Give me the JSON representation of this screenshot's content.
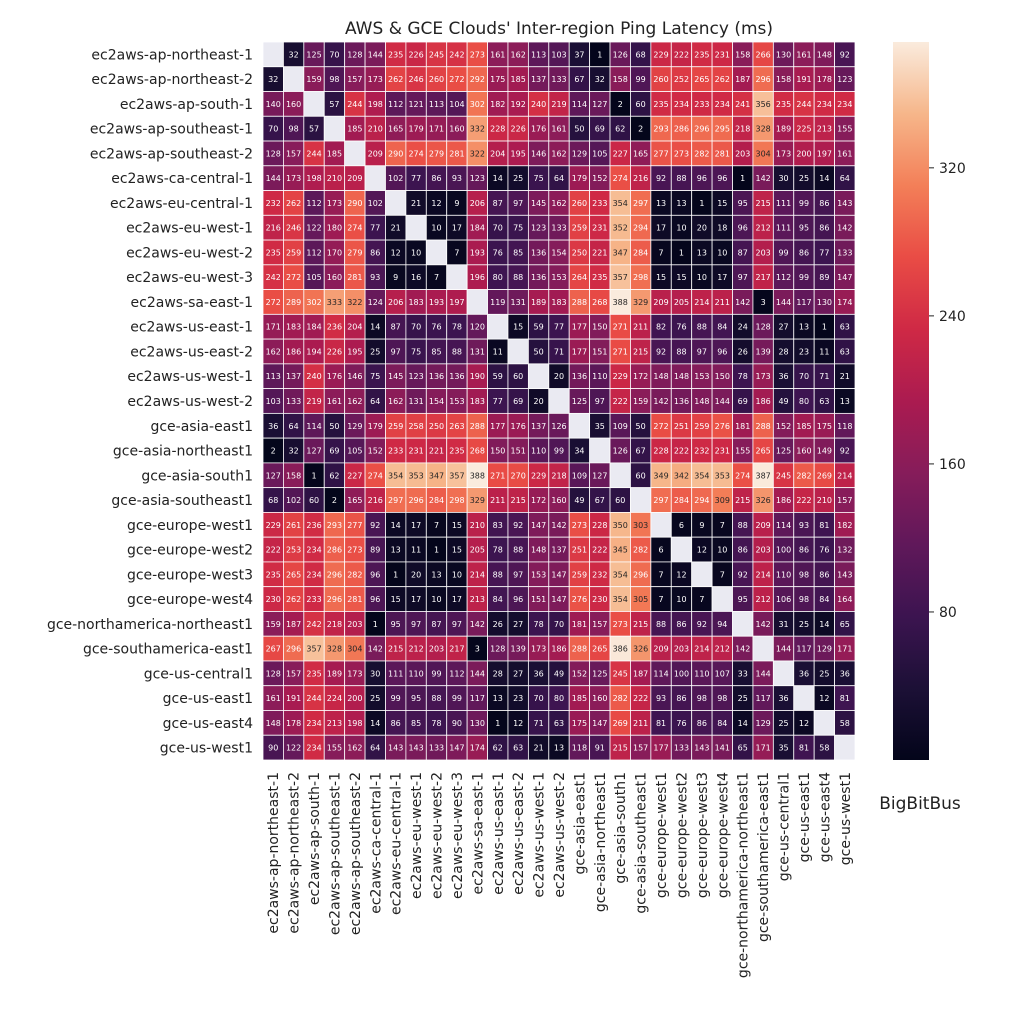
{
  "chart_data": {
    "type": "heatmap",
    "title": "AWS & GCE Clouds' Inter-region Ping Latency (ms)",
    "watermark": "BigBitBus",
    "labels": [
      "ec2aws-ap-northeast-1",
      "ec2aws-ap-northeast-2",
      "ec2aws-ap-south-1",
      "ec2aws-ap-southeast-1",
      "ec2aws-ap-southeast-2",
      "ec2aws-ca-central-1",
      "ec2aws-eu-central-1",
      "ec2aws-eu-west-1",
      "ec2aws-eu-west-2",
      "ec2aws-eu-west-3",
      "ec2aws-sa-east-1",
      "ec2aws-us-east-1",
      "ec2aws-us-east-2",
      "ec2aws-us-west-1",
      "ec2aws-us-west-2",
      "gce-asia-east1",
      "gce-asia-northeast1",
      "gce-asia-south1",
      "gce-asia-southeast1",
      "gce-europe-west1",
      "gce-europe-west2",
      "gce-europe-west3",
      "gce-europe-west4",
      "gce-northamerica-northeast1",
      "gce-southamerica-east1",
      "gce-us-central1",
      "gce-us-east1",
      "gce-us-east4",
      "gce-us-west1"
    ],
    "values": [
      [
        null,
        32,
        125,
        70,
        128,
        144,
        235,
        226,
        245,
        242,
        273,
        161,
        162,
        113,
        103,
        37,
        1,
        126,
        68,
        229,
        222,
        235,
        231,
        158,
        266,
        130,
        161,
        148,
        92
      ],
      [
        32,
        null,
        159,
        98,
        157,
        173,
        262,
        246,
        260,
        272,
        292,
        175,
        185,
        137,
        133,
        67,
        32,
        158,
        99,
        260,
        252,
        265,
        262,
        187,
        296,
        158,
        191,
        178,
        123
      ],
      [
        140,
        160,
        null,
        57,
        244,
        198,
        112,
        121,
        113,
        104,
        302,
        182,
        192,
        240,
        219,
        114,
        127,
        2,
        60,
        235,
        234,
        233,
        234,
        241,
        356,
        235,
        244,
        234,
        234
      ],
      [
        70,
        98,
        57,
        null,
        185,
        210,
        165,
        179,
        171,
        160,
        332,
        228,
        226,
        176,
        161,
        50,
        69,
        62,
        2,
        293,
        286,
        296,
        295,
        218,
        328,
        189,
        225,
        213,
        155
      ],
      [
        128,
        157,
        244,
        185,
        null,
        209,
        290,
        274,
        279,
        281,
        322,
        204,
        195,
        146,
        162,
        129,
        105,
        227,
        165,
        277,
        273,
        282,
        281,
        203,
        304,
        173,
        200,
        197,
        161
      ],
      [
        144,
        173,
        198,
        210,
        209,
        null,
        102,
        77,
        86,
        93,
        123,
        14,
        25,
        75,
        64,
        179,
        152,
        274,
        216,
        92,
        88,
        96,
        96,
        1,
        142,
        30,
        25,
        14,
        64
      ],
      [
        232,
        262,
        112,
        173,
        290,
        102,
        null,
        21,
        12,
        9,
        206,
        87,
        97,
        145,
        162,
        260,
        233,
        354,
        297,
        13,
        13,
        1,
        15,
        95,
        215,
        111,
        99,
        86,
        143
      ],
      [
        216,
        246,
        122,
        180,
        274,
        77,
        21,
        null,
        10,
        17,
        184,
        70,
        75,
        123,
        133,
        259,
        231,
        352,
        294,
        17,
        10,
        20,
        18,
        96,
        212,
        111,
        95,
        86,
        142
      ],
      [
        235,
        259,
        112,
        170,
        279,
        86,
        12,
        10,
        null,
        7,
        193,
        76,
        85,
        136,
        154,
        250,
        221,
        347,
        284,
        7,
        1,
        13,
        10,
        87,
        203,
        99,
        86,
        77,
        133
      ],
      [
        242,
        272,
        105,
        160,
        281,
        93,
        9,
        16,
        7,
        null,
        196,
        80,
        88,
        136,
        153,
        264,
        235,
        357,
        298,
        15,
        15,
        10,
        17,
        97,
        217,
        112,
        99,
        89,
        147
      ],
      [
        272,
        289,
        302,
        333,
        322,
        124,
        206,
        183,
        193,
        197,
        null,
        119,
        131,
        189,
        183,
        288,
        268,
        388,
        329,
        209,
        205,
        214,
        211,
        142,
        3,
        144,
        117,
        130,
        174
      ],
      [
        171,
        183,
        184,
        236,
        204,
        14,
        87,
        70,
        76,
        78,
        120,
        null,
        15,
        59,
        77,
        177,
        150,
        271,
        211,
        82,
        76,
        88,
        84,
        24,
        128,
        27,
        13,
        1,
        63
      ],
      [
        162,
        186,
        194,
        226,
        195,
        25,
        97,
        75,
        85,
        88,
        131,
        11,
        null,
        50,
        71,
        177,
        151,
        271,
        215,
        92,
        88,
        97,
        96,
        26,
        139,
        28,
        23,
        11,
        63
      ],
      [
        113,
        137,
        240,
        176,
        146,
        75,
        145,
        123,
        136,
        136,
        190,
        59,
        60,
        null,
        20,
        136,
        110,
        229,
        172,
        148,
        148,
        153,
        150,
        78,
        173,
        36,
        70,
        71,
        21
      ],
      [
        103,
        133,
        219,
        161,
        162,
        64,
        162,
        131,
        154,
        153,
        183,
        77,
        69,
        20,
        null,
        125,
        97,
        222,
        159,
        142,
        136,
        148,
        144,
        69,
        186,
        49,
        80,
        63,
        13
      ],
      [
        36,
        64,
        114,
        50,
        129,
        179,
        259,
        258,
        250,
        263,
        288,
        177,
        176,
        137,
        126,
        null,
        35,
        109,
        50,
        272,
        251,
        259,
        276,
        181,
        288,
        152,
        185,
        175,
        118
      ],
      [
        2,
        32,
        127,
        69,
        105,
        152,
        233,
        231,
        221,
        235,
        268,
        150,
        151,
        110,
        99,
        34,
        null,
        126,
        67,
        228,
        222,
        232,
        231,
        155,
        265,
        125,
        160,
        149,
        92
      ],
      [
        127,
        158,
        1,
        62,
        227,
        274,
        354,
        353,
        347,
        357,
        388,
        271,
        270,
        229,
        218,
        109,
        127,
        null,
        60,
        349,
        342,
        354,
        353,
        274,
        387,
        245,
        282,
        269,
        214
      ],
      [
        68,
        102,
        60,
        2,
        165,
        216,
        297,
        296,
        284,
        298,
        329,
        211,
        215,
        172,
        160,
        49,
        67,
        60,
        null,
        297,
        284,
        294,
        309,
        215,
        326,
        186,
        222,
        210,
        157
      ],
      [
        229,
        261,
        236,
        293,
        277,
        92,
        14,
        17,
        7,
        15,
        210,
        83,
        92,
        147,
        142,
        273,
        228,
        350,
        303,
        null,
        6,
        9,
        7,
        88,
        209,
        114,
        93,
        81,
        182
      ],
      [
        222,
        253,
        234,
        286,
        273,
        89,
        13,
        11,
        1,
        15,
        205,
        78,
        88,
        148,
        137,
        251,
        222,
        345,
        282,
        6,
        null,
        12,
        10,
        86,
        203,
        100,
        86,
        76,
        132
      ],
      [
        235,
        265,
        234,
        296,
        282,
        96,
        1,
        20,
        13,
        10,
        214,
        88,
        97,
        153,
        147,
        259,
        232,
        354,
        296,
        7,
        12,
        null,
        7,
        92,
        214,
        110,
        98,
        86,
        143
      ],
      [
        230,
        262,
        233,
        296,
        281,
        96,
        15,
        17,
        10,
        17,
        213,
        84,
        96,
        151,
        147,
        276,
        230,
        354,
        305,
        7,
        10,
        7,
        null,
        95,
        212,
        106,
        98,
        84,
        164
      ],
      [
        159,
        187,
        242,
        218,
        203,
        1,
        95,
        97,
        87,
        97,
        142,
        26,
        27,
        78,
        70,
        181,
        157,
        273,
        215,
        88,
        86,
        92,
        94,
        null,
        142,
        31,
        25,
        14,
        65
      ],
      [
        267,
        296,
        357,
        328,
        304,
        142,
        215,
        212,
        203,
        217,
        3,
        128,
        139,
        173,
        186,
        288,
        265,
        386,
        326,
        209,
        203,
        214,
        212,
        142,
        null,
        144,
        117,
        129,
        171
      ],
      [
        128,
        157,
        235,
        189,
        173,
        30,
        111,
        110,
        99,
        112,
        144,
        28,
        27,
        36,
        49,
        152,
        125,
        245,
        187,
        114,
        100,
        110,
        107,
        33,
        144,
        null,
        36,
        25,
        36
      ],
      [
        161,
        191,
        244,
        224,
        200,
        25,
        99,
        95,
        88,
        99,
        117,
        13,
        23,
        70,
        80,
        185,
        160,
        282,
        222,
        93,
        86,
        98,
        98,
        25,
        117,
        36,
        null,
        12,
        81
      ],
      [
        148,
        178,
        234,
        213,
        198,
        14,
        86,
        85,
        78,
        90,
        130,
        1,
        12,
        71,
        63,
        175,
        147,
        269,
        211,
        81,
        76,
        86,
        84,
        14,
        129,
        25,
        12,
        null,
        58
      ],
      [
        90,
        122,
        234,
        155,
        162,
        64,
        143,
        143,
        133,
        147,
        174,
        62,
        63,
        21,
        13,
        118,
        91,
        215,
        157,
        177,
        133,
        143,
        141,
        65,
        171,
        35,
        81,
        58,
        null
      ]
    ],
    "colorbar": {
      "min": 0,
      "max": 388,
      "ticks": [
        80,
        160,
        240,
        320
      ],
      "colormap": "rocket"
    },
    "diagonal_color": "#eaeaf2",
    "grid_line_color": "#ffffff"
  }
}
